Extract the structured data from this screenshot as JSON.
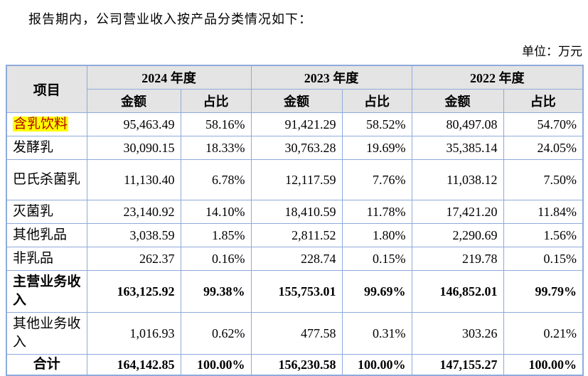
{
  "intro": "报告期内，公司营业收入按产品分类情况如下：",
  "unit_label": "单位：万元",
  "table": {
    "item_header": "项目",
    "year_headers": [
      "2024 年度",
      "2023 年度",
      "2022 年度"
    ],
    "sub_headers": [
      "金额",
      "占比"
    ],
    "rows": [
      {
        "item": "含乳饮料",
        "highlight": true,
        "values": [
          "95,463.49",
          "58.16%",
          "91,421.29",
          "58.52%",
          "80,497.08",
          "54.70%"
        ]
      },
      {
        "item": "发酵乳",
        "values": [
          "30,090.15",
          "18.33%",
          "30,763.28",
          "19.69%",
          "35,385.14",
          "24.05%"
        ]
      },
      {
        "item": "巴氏杀菌乳",
        "tall": true,
        "values": [
          "11,130.40",
          "6.78%",
          "12,117.59",
          "7.76%",
          "11,038.12",
          "7.50%"
        ]
      },
      {
        "item": "灭菌乳",
        "values": [
          "23,140.92",
          "14.10%",
          "18,410.59",
          "11.78%",
          "17,421.20",
          "11.84%"
        ]
      },
      {
        "item": "其他乳品",
        "values": [
          "3,038.59",
          "1.85%",
          "2,811.52",
          "1.80%",
          "2,290.69",
          "1.56%"
        ]
      },
      {
        "item": "非乳品",
        "values": [
          "262.37",
          "0.16%",
          "228.74",
          "0.15%",
          "219.78",
          "0.15%"
        ]
      },
      {
        "item": "主营业务收入",
        "bold": true,
        "tall": true,
        "values": [
          "163,125.92",
          "99.38%",
          "155,753.01",
          "99.69%",
          "146,852.01",
          "99.79%"
        ]
      },
      {
        "item": "其他业务收入",
        "tall": true,
        "values": [
          "1,016.93",
          "0.62%",
          "477.58",
          "0.31%",
          "303.26",
          "0.21%"
        ]
      },
      {
        "item": "合计",
        "bold": true,
        "center": true,
        "total": true,
        "values": [
          "164,142.85",
          "100.00%",
          "156,230.58",
          "100.00%",
          "147,155.27",
          "100.00%"
        ]
      }
    ]
  },
  "colors": {
    "border": "#8eaadb",
    "header_bg": "#e4e4e4",
    "highlight": "#ffff00",
    "highlight_text": "#b40000"
  }
}
